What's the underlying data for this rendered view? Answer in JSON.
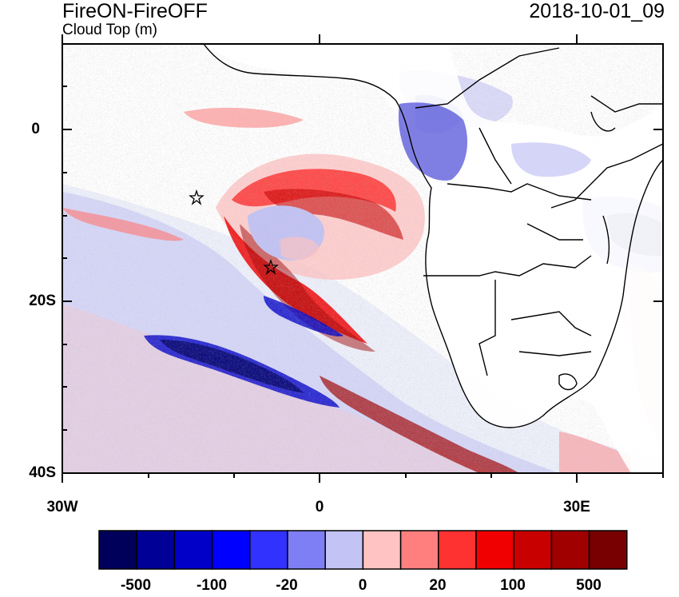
{
  "header": {
    "title": "FireON-FireOFF",
    "subtitle": "Cloud Top (m)",
    "timestamp": "2018-10-01_09"
  },
  "map": {
    "region": "Southeast Atlantic and southern Africa",
    "lon_range": [
      -30,
      40
    ],
    "lat_range": [
      -40,
      10
    ],
    "y_tick_labels": [
      "0",
      "20S",
      "40S"
    ],
    "x_tick_labels": [
      "30W",
      "0",
      "30E"
    ],
    "markers": [
      {
        "name": "star-marker-1",
        "lon": -14.5,
        "lat": -8.0
      },
      {
        "name": "star-marker-2",
        "lon": -6.0,
        "lat": -16.0
      }
    ]
  },
  "colorbar": {
    "labels": [
      "-500",
      "-100",
      "-20",
      "0",
      "20",
      "100",
      "500"
    ],
    "colors": [
      "#00005a",
      "#000096",
      "#0000c8",
      "#0000ff",
      "#3232ff",
      "#7f7ff5",
      "#c3c3f5",
      "#ffc3c3",
      "#ff7f7f",
      "#ff3232",
      "#f00000",
      "#c80000",
      "#a00000",
      "#780000"
    ]
  }
}
